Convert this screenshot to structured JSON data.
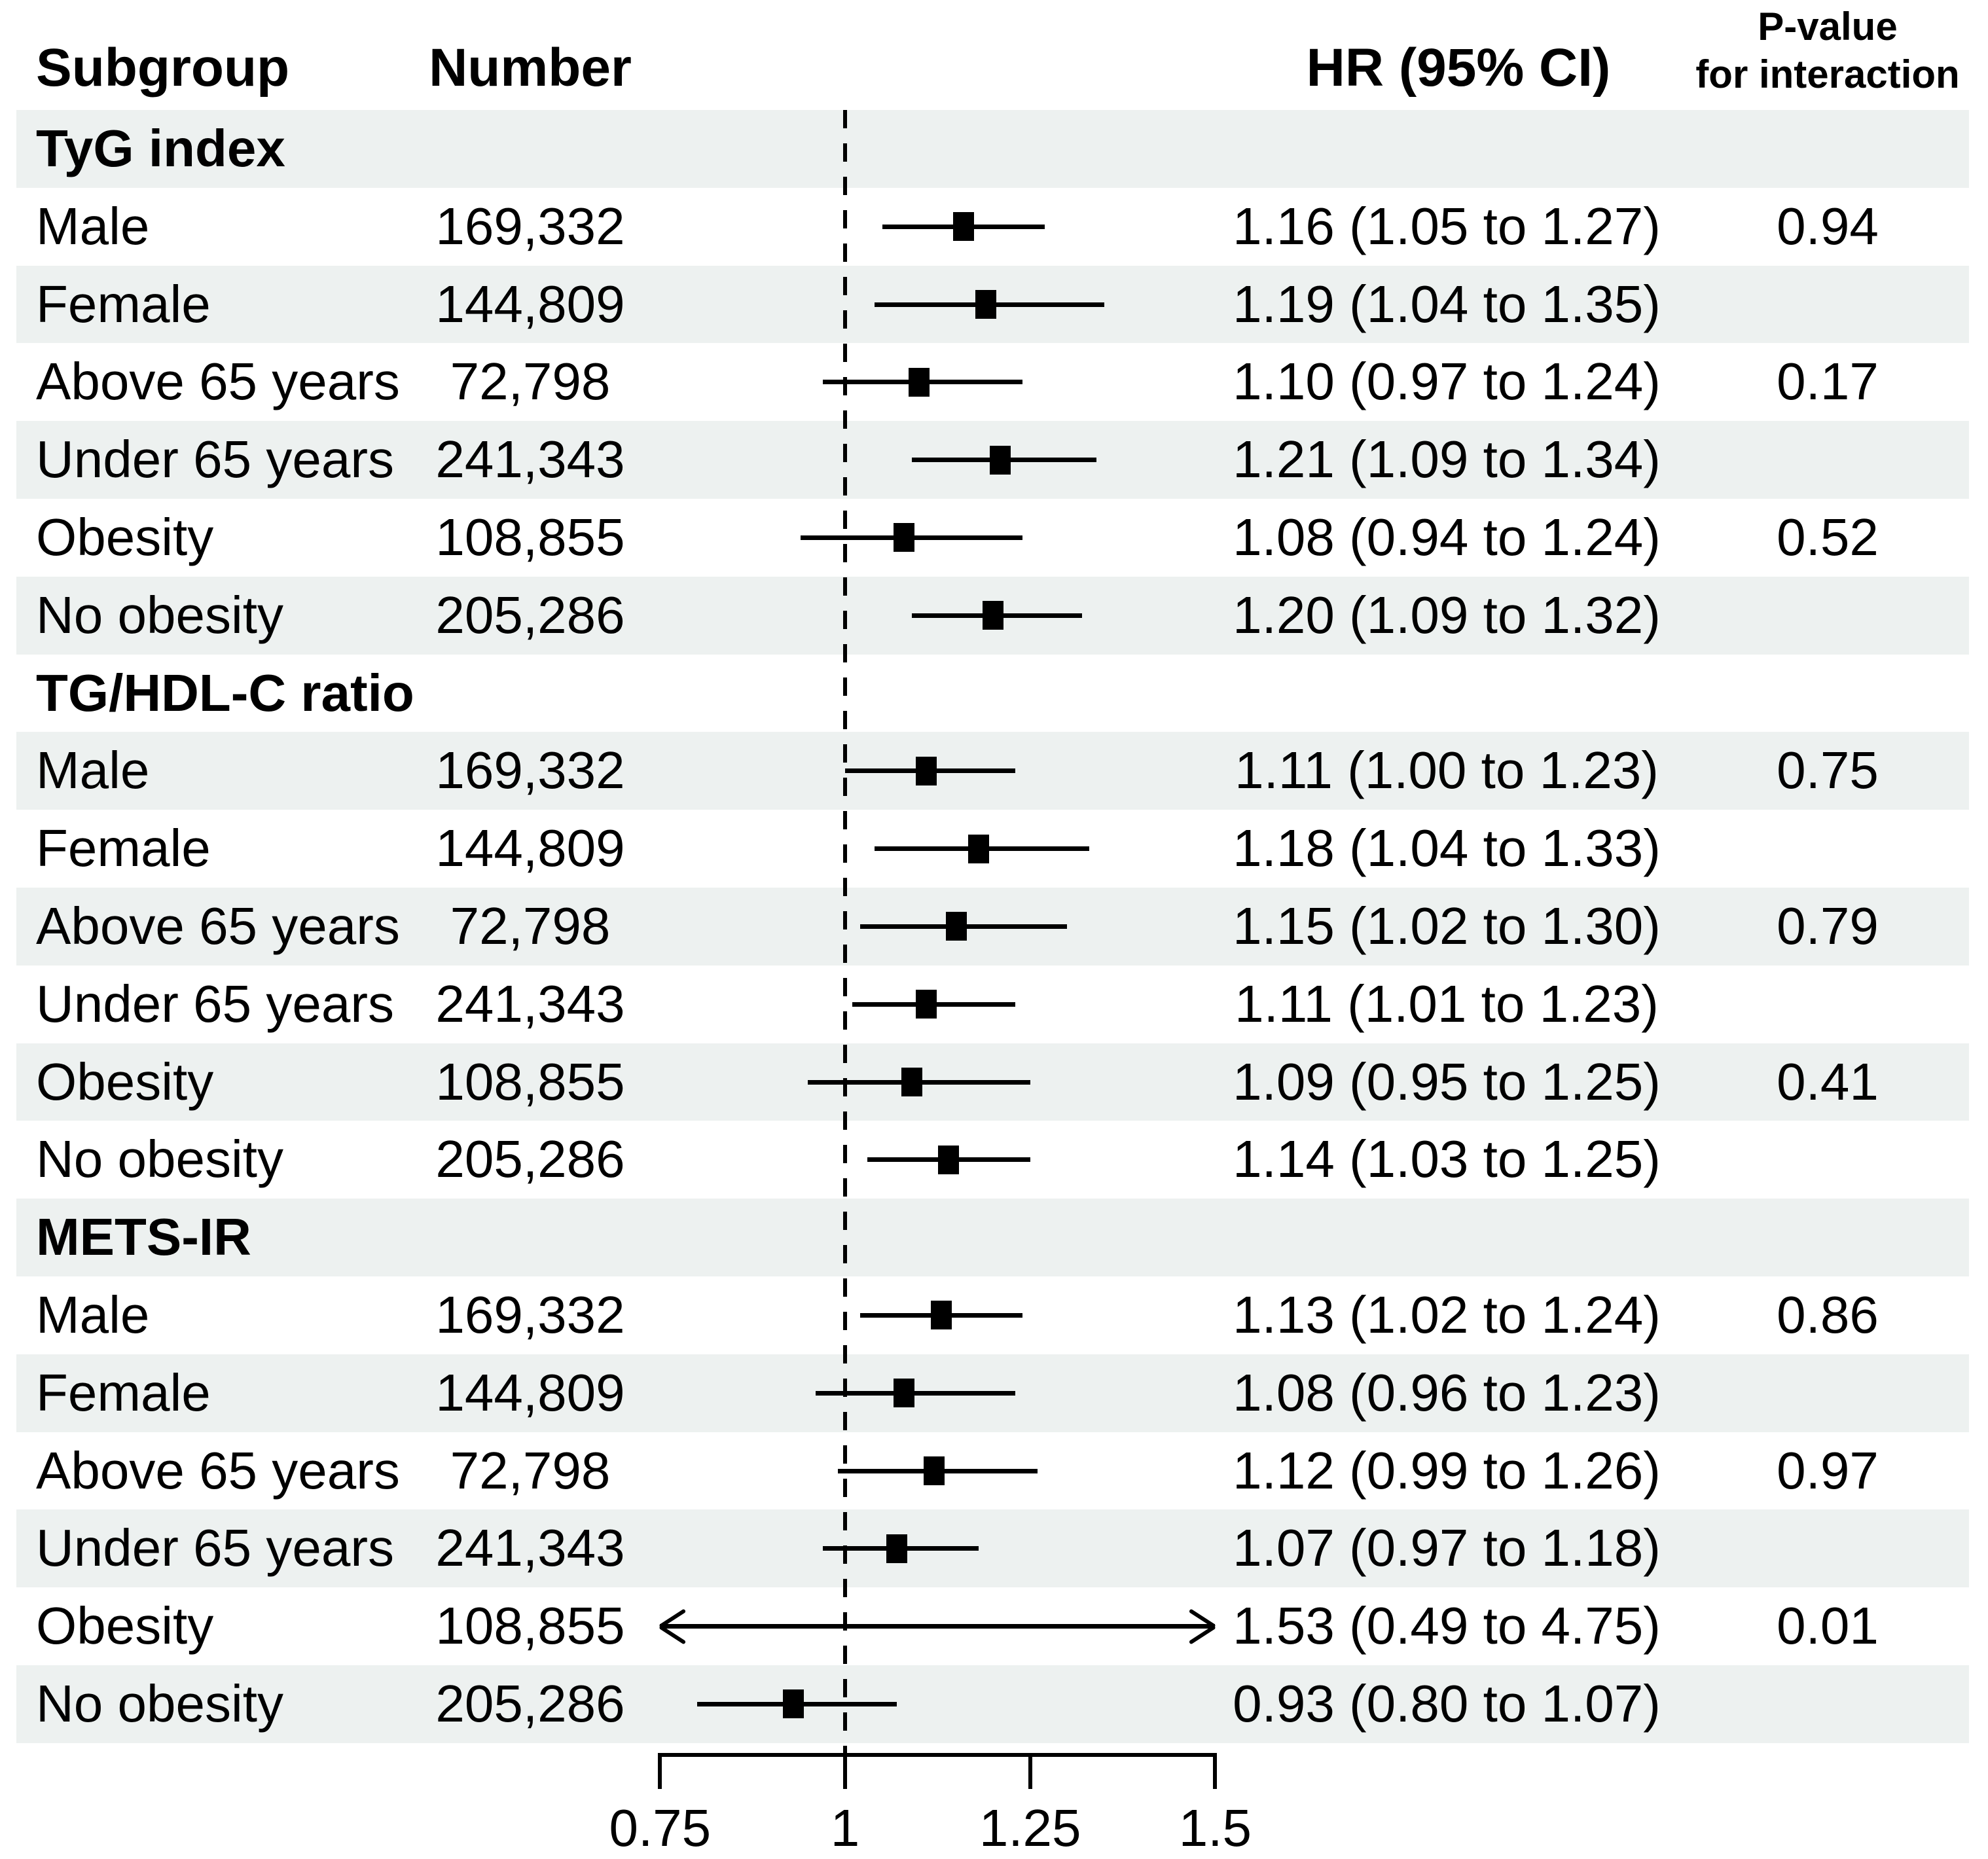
{
  "header": {
    "subgroup": "Subgroup",
    "number": "Number",
    "hr": "HR (95% CI)",
    "pvalue_line1": "P-value",
    "pvalue_line2": "for interaction"
  },
  "colors": {
    "stripe": "#edf1f0",
    "ink": "#000000"
  },
  "chart_data": {
    "type": "forest",
    "x_axis": {
      "scale": "linear",
      "min": 0.75,
      "max": 1.5,
      "tick_values": [
        0.75,
        1,
        1.25,
        1.5
      ],
      "tick_labels": [
        "0.75",
        "1",
        "1.25",
        "1.5"
      ],
      "reference_line": 1
    },
    "sections": [
      {
        "title": "TyG index",
        "rows": [
          {
            "subgroup": "Male",
            "number": "169,332",
            "hr": 1.16,
            "lo": 1.05,
            "hi": 1.27,
            "hr_text": "1.16 (1.05 to 1.27)",
            "p_interaction": "0.94"
          },
          {
            "subgroup": "Female",
            "number": "144,809",
            "hr": 1.19,
            "lo": 1.04,
            "hi": 1.35,
            "hr_text": "1.19 (1.04 to 1.35)",
            "p_interaction": ""
          },
          {
            "subgroup": "Above 65 years",
            "number": "72,798",
            "hr": 1.1,
            "lo": 0.97,
            "hi": 1.24,
            "hr_text": "1.10 (0.97 to 1.24)",
            "p_interaction": "0.17"
          },
          {
            "subgroup": "Under 65 years",
            "number": "241,343",
            "hr": 1.21,
            "lo": 1.09,
            "hi": 1.34,
            "hr_text": "1.21 (1.09 to 1.34)",
            "p_interaction": ""
          },
          {
            "subgroup": "Obesity",
            "number": "108,855",
            "hr": 1.08,
            "lo": 0.94,
            "hi": 1.24,
            "hr_text": "1.08 (0.94 to 1.24)",
            "p_interaction": "0.52"
          },
          {
            "subgroup": "No obesity",
            "number": "205,286",
            "hr": 1.2,
            "lo": 1.09,
            "hi": 1.32,
            "hr_text": "1.20 (1.09 to 1.32)",
            "p_interaction": ""
          }
        ]
      },
      {
        "title": "TG/HDL-C ratio",
        "rows": [
          {
            "subgroup": "Male",
            "number": "169,332",
            "hr": 1.11,
            "lo": 1.0,
            "hi": 1.23,
            "hr_text": "1.11 (1.00 to 1.23)",
            "p_interaction": "0.75"
          },
          {
            "subgroup": "Female",
            "number": "144,809",
            "hr": 1.18,
            "lo": 1.04,
            "hi": 1.33,
            "hr_text": "1.18 (1.04 to 1.33)",
            "p_interaction": ""
          },
          {
            "subgroup": "Above 65 years",
            "number": "72,798",
            "hr": 1.15,
            "lo": 1.02,
            "hi": 1.3,
            "hr_text": "1.15 (1.02 to 1.30)",
            "p_interaction": "0.79"
          },
          {
            "subgroup": "Under 65 years",
            "number": "241,343",
            "hr": 1.11,
            "lo": 1.01,
            "hi": 1.23,
            "hr_text": "1.11 (1.01 to 1.23)",
            "p_interaction": ""
          },
          {
            "subgroup": "Obesity",
            "number": "108,855",
            "hr": 1.09,
            "lo": 0.95,
            "hi": 1.25,
            "hr_text": "1.09 (0.95 to 1.25)",
            "p_interaction": "0.41"
          },
          {
            "subgroup": "No obesity",
            "number": "205,286",
            "hr": 1.14,
            "lo": 1.03,
            "hi": 1.25,
            "hr_text": "1.14 (1.03 to 1.25)",
            "p_interaction": ""
          }
        ]
      },
      {
        "title": "METS-IR",
        "rows": [
          {
            "subgroup": "Male",
            "number": "169,332",
            "hr": 1.13,
            "lo": 1.02,
            "hi": 1.24,
            "hr_text": "1.13 (1.02 to 1.24)",
            "p_interaction": "0.86"
          },
          {
            "subgroup": "Female",
            "number": "144,809",
            "hr": 1.08,
            "lo": 0.96,
            "hi": 1.23,
            "hr_text": "1.08 (0.96 to 1.23)",
            "p_interaction": ""
          },
          {
            "subgroup": "Above 65 years",
            "number": "72,798",
            "hr": 1.12,
            "lo": 0.99,
            "hi": 1.26,
            "hr_text": "1.12 (0.99 to 1.26)",
            "p_interaction": "0.97"
          },
          {
            "subgroup": "Under 65 years",
            "number": "241,343",
            "hr": 1.07,
            "lo": 0.97,
            "hi": 1.18,
            "hr_text": "1.07 (0.97 to 1.18)",
            "p_interaction": ""
          },
          {
            "subgroup": "Obesity",
            "number": "108,855",
            "hr": 1.53,
            "lo": 0.49,
            "hi": 4.75,
            "hr_text": "1.53 (0.49 to 4.75)",
            "p_interaction": "0.01"
          },
          {
            "subgroup": "No obesity",
            "number": "205,286",
            "hr": 0.93,
            "lo": 0.8,
            "hi": 1.07,
            "hr_text": "0.93 (0.80 to 1.07)",
            "p_interaction": ""
          }
        ]
      }
    ]
  }
}
